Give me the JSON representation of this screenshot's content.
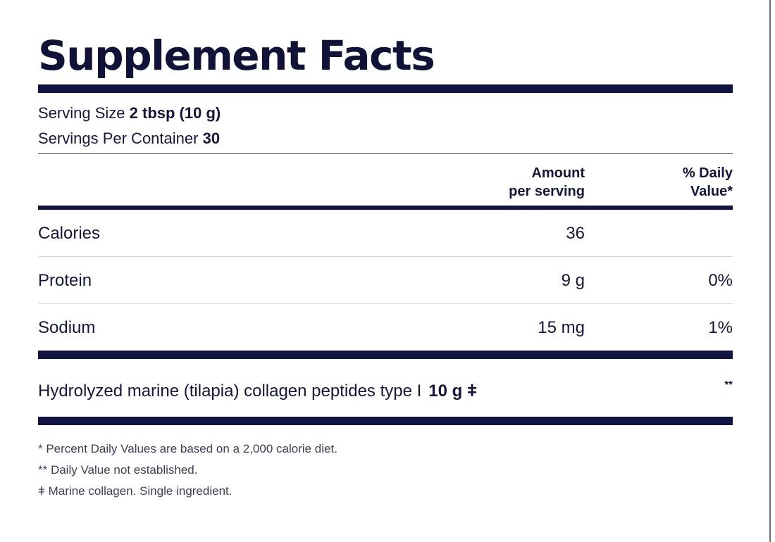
{
  "label": {
    "title": "Supplement Facts",
    "serving_size_label": "Serving Size",
    "serving_size_value": "2 tbsp (10 g)",
    "servings_per_container_label": "Servings Per Container",
    "servings_per_container_value": "30",
    "header": {
      "amount_line1": "Amount",
      "amount_line2": "per serving",
      "dv_line1": "% Daily",
      "dv_line2": "Value*"
    },
    "nutrients": [
      {
        "name": "Calories",
        "amount": "36",
        "dv": ""
      },
      {
        "name": "Protein",
        "amount": "9 g",
        "dv": "0%"
      },
      {
        "name": "Sodium",
        "amount": "15 mg",
        "dv": "1%"
      }
    ],
    "ingredient": {
      "name": "Hydrolyzed marine (tilapia) collagen peptides type I",
      "amount": "10 g ǂ",
      "dv": "**"
    },
    "footnotes": [
      "* Percent Daily Values are based on a 2,000 calorie diet.",
      "** Daily Value not established.",
      "ǂ Marine collagen. Single ingredient."
    ]
  }
}
